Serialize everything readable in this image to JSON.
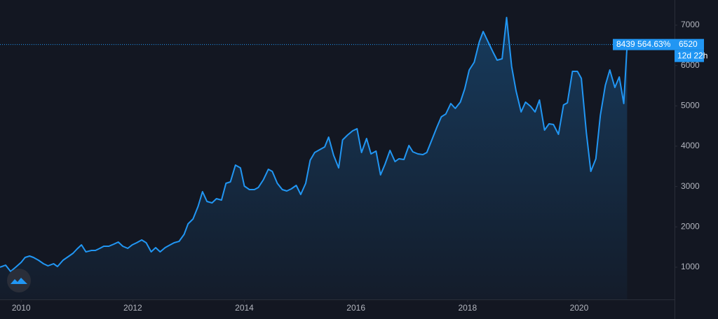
{
  "chart_data": {
    "type": "area",
    "x": [
      2009.62,
      2009.72,
      2009.81,
      2009.9,
      2010.0,
      2010.07,
      2010.15,
      2010.22,
      2010.31,
      2010.4,
      2010.48,
      2010.58,
      2010.65,
      2010.75,
      2010.84,
      2010.93,
      2011.0,
      2011.08,
      2011.16,
      2011.26,
      2011.33,
      2011.41,
      2011.48,
      2011.57,
      2011.66,
      2011.74,
      2011.82,
      2011.91,
      2011.99,
      2012.07,
      2012.16,
      2012.24,
      2012.33,
      2012.41,
      2012.49,
      2012.58,
      2012.67,
      2012.74,
      2012.83,
      2012.92,
      2012.99,
      2013.08,
      2013.17,
      2013.25,
      2013.33,
      2013.42,
      2013.5,
      2013.59,
      2013.67,
      2013.75,
      2013.84,
      2013.93,
      2014.0,
      2014.09,
      2014.18,
      2014.25,
      2014.34,
      2014.43,
      2014.5,
      2014.59,
      2014.68,
      2014.76,
      2014.84,
      2014.93,
      2015.01,
      2015.1,
      2015.18,
      2015.26,
      2015.35,
      2015.44,
      2015.51,
      2015.6,
      2015.69,
      2015.76,
      2015.85,
      2015.94,
      2016.02,
      2016.1,
      2016.19,
      2016.27,
      2016.36,
      2016.44,
      2016.52,
      2016.61,
      2016.7,
      2016.77,
      2016.86,
      2016.95,
      2017.02,
      2017.11,
      2017.2,
      2017.27,
      2017.36,
      2017.45,
      2017.53,
      2017.61,
      2017.7,
      2017.78,
      2017.87,
      2017.95,
      2018.03,
      2018.12,
      2018.21,
      2018.28,
      2018.37,
      2018.46,
      2018.53,
      2018.62,
      2018.7,
      2018.79,
      2018.87,
      2018.96,
      2019.04,
      2019.13,
      2019.21,
      2019.29,
      2019.38,
      2019.46,
      2019.54,
      2019.63,
      2019.72,
      2019.79,
      2019.88,
      2019.97,
      2020.04,
      2020.13,
      2020.21,
      2020.3,
      2020.38,
      2020.47,
      2020.55,
      2020.64,
      2020.72,
      2020.8,
      2020.86
    ],
    "series": [
      {
        "color": "#2196f3",
        "values": [
          1000,
          1052,
          896,
          1000,
          1121,
          1243,
          1277,
          1243,
          1173,
          1087,
          1035,
          1087,
          1017,
          1173,
          1260,
          1347,
          1451,
          1555,
          1381,
          1416,
          1416,
          1468,
          1520,
          1520,
          1572,
          1624,
          1520,
          1468,
          1555,
          1607,
          1676,
          1607,
          1381,
          1486,
          1381,
          1486,
          1555,
          1607,
          1642,
          1815,
          2075,
          2196,
          2509,
          2873,
          2630,
          2595,
          2699,
          2665,
          3081,
          3115,
          3532,
          3462,
          3011,
          2925,
          2925,
          2977,
          3168,
          3428,
          3376,
          3081,
          2925,
          2890,
          2942,
          3029,
          2803,
          3081,
          3653,
          3844,
          3913,
          3983,
          4225,
          3774,
          3462,
          4156,
          4277,
          4381,
          4433,
          3844,
          4191,
          3809,
          3878,
          3289,
          3549,
          3896,
          3618,
          3688,
          3670,
          4017,
          3861,
          3809,
          3792,
          3844,
          4156,
          4468,
          4728,
          4797,
          5058,
          4936,
          5092,
          5422,
          5890,
          6081,
          6583,
          6844,
          6583,
          6323,
          6133,
          6167,
          7190,
          5977,
          5370,
          4850,
          5092,
          4988,
          4850,
          5144,
          4399,
          4555,
          4537,
          4295,
          5023,
          5075,
          5855,
          5855,
          5682,
          4329,
          3376,
          3688,
          4763,
          5508,
          5890,
          5456,
          5717,
          5058,
          6520
        ]
      }
    ],
    "xlim": [
      2009.62,
      2021.71
    ],
    "xticks": [
      2010,
      2012,
      2014,
      2016,
      2018,
      2020
    ],
    "ylim": [
      202,
      7624
    ],
    "yticks": [
      1000,
      2000,
      3000,
      4000,
      5000,
      6000,
      7000
    ],
    "annotations": [
      "8439 564.63%",
      "12d 22h"
    ]
  }
}
